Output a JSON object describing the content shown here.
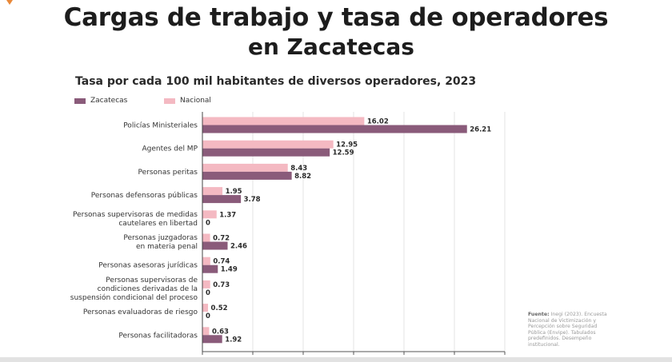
{
  "header": {
    "title": "Cargas de trabajo y tasa de operadores",
    "subtitle": "en Zacatecas"
  },
  "colors": {
    "zacatecas": "#8a5b7a",
    "nacional": "#f4b9c2",
    "accent": "#e9893a"
  },
  "source": {
    "label": "Fuente:",
    "text": "Inegi (2023). Encuesta Nacional de Victimización y Percepción sobre Seguridad Pública (Envipe). Tabulados predefinidos. Desempeño institucional."
  },
  "chart_data": {
    "type": "bar",
    "orientation": "horizontal",
    "title": "Tasa por cada 100 mil habitantes de diversos operadores, 2023",
    "legend_position": "top-left",
    "xlim": [
      0,
      30
    ],
    "xticks": [
      0,
      5,
      10,
      15,
      20,
      25,
      30
    ],
    "grid": true,
    "categories": [
      [
        "Policías Ministeriales"
      ],
      [
        "Agentes del MP"
      ],
      [
        "Personas peritas"
      ],
      [
        "Personas defensoras públicas"
      ],
      [
        "Personas supervisoras de medidas",
        "cautelares en libertad"
      ],
      [
        "Personas juzgadoras",
        "en materia penal"
      ],
      [
        "Personas asesoras jurídicas"
      ],
      [
        "Personas supervisoras de",
        "condiciones derivadas de la",
        "suspensión condicional del proceso"
      ],
      [
        "Personas evaluadoras de riesgo"
      ],
      [
        "Personas facilitadoras"
      ]
    ],
    "series": [
      {
        "name": "Nacional",
        "values": [
          16.02,
          12.95,
          8.43,
          1.95,
          1.37,
          0.72,
          0.74,
          0.73,
          0.52,
          0.63
        ]
      },
      {
        "name": "Zacatecas",
        "values": [
          26.21,
          12.59,
          8.82,
          3.78,
          0,
          2.46,
          1.49,
          0,
          0,
          1.92
        ]
      }
    ],
    "legend": [
      "Zacatecas",
      "Nacional"
    ]
  }
}
